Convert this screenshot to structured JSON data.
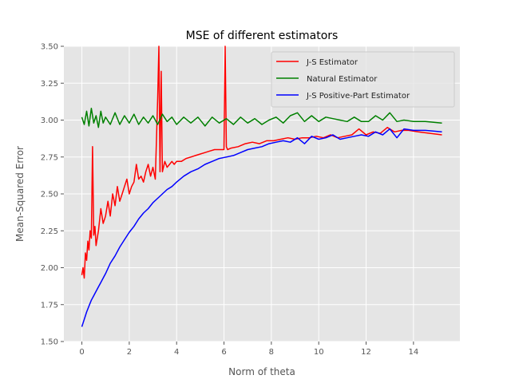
{
  "chart_data": {
    "type": "line",
    "title": "MSE of different estimators",
    "xlabel": "Norm of theta",
    "ylabel": "Mean-Squared Error",
    "xlim": [
      -0.76,
      15.96
    ],
    "ylim": [
      1.5,
      3.5
    ],
    "xticks": [
      0,
      2,
      4,
      6,
      8,
      10,
      12,
      14
    ],
    "yticks": [
      1.5,
      1.75,
      2.0,
      2.25,
      2.5,
      2.75,
      3.0,
      3.25,
      3.5
    ],
    "grid": true,
    "legend": "top-right",
    "series": [
      {
        "name": "J-S Estimator",
        "color": "#ff0000",
        "x": [
          0.0,
          0.05,
          0.1,
          0.15,
          0.2,
          0.25,
          0.3,
          0.35,
          0.4,
          0.45,
          0.5,
          0.55,
          0.6,
          0.7,
          0.8,
          0.9,
          1.0,
          1.1,
          1.2,
          1.3,
          1.4,
          1.5,
          1.6,
          1.7,
          1.8,
          1.9,
          2.0,
          2.1,
          2.2,
          2.3,
          2.4,
          2.5,
          2.6,
          2.7,
          2.8,
          2.9,
          3.0,
          3.1,
          3.2,
          3.25,
          3.3,
          3.35,
          3.4,
          3.5,
          3.6,
          3.7,
          3.8,
          3.9,
          4.0,
          4.2,
          4.4,
          4.6,
          4.8,
          5.0,
          5.2,
          5.4,
          5.6,
          5.8,
          6.0,
          6.05,
          6.1,
          6.15,
          6.3,
          6.6,
          6.9,
          7.2,
          7.5,
          7.8,
          8.1,
          8.4,
          8.7,
          9.0,
          9.3,
          9.6,
          9.9,
          10.2,
          10.5,
          10.8,
          11.1,
          11.4,
          11.7,
          12.0,
          12.3,
          12.6,
          12.9,
          13.2,
          13.5,
          13.8,
          14.2,
          14.7,
          15.2
        ],
        "values": [
          1.95,
          2.0,
          1.93,
          2.1,
          2.05,
          2.18,
          2.12,
          2.25,
          2.2,
          2.82,
          2.22,
          2.28,
          2.15,
          2.25,
          2.4,
          2.3,
          2.35,
          2.45,
          2.35,
          2.5,
          2.42,
          2.55,
          2.45,
          2.5,
          2.55,
          2.6,
          2.5,
          2.55,
          2.58,
          2.7,
          2.6,
          2.62,
          2.58,
          2.65,
          2.7,
          2.62,
          2.68,
          2.6,
          3.15,
          3.6,
          2.65,
          3.33,
          2.65,
          2.72,
          2.68,
          2.7,
          2.72,
          2.7,
          2.72,
          2.72,
          2.74,
          2.75,
          2.76,
          2.77,
          2.78,
          2.79,
          2.8,
          2.8,
          2.8,
          3.6,
          2.82,
          2.8,
          2.81,
          2.82,
          2.84,
          2.85,
          2.84,
          2.86,
          2.86,
          2.87,
          2.88,
          2.87,
          2.88,
          2.88,
          2.89,
          2.88,
          2.9,
          2.88,
          2.89,
          2.9,
          2.94,
          2.9,
          2.92,
          2.91,
          2.95,
          2.92,
          2.93,
          2.93,
          2.92,
          2.91,
          2.9
        ]
      },
      {
        "name": "Natural Estimator",
        "color": "#008000",
        "x": [
          0.0,
          0.1,
          0.2,
          0.3,
          0.4,
          0.5,
          0.6,
          0.7,
          0.8,
          0.9,
          1.0,
          1.2,
          1.4,
          1.6,
          1.8,
          2.0,
          2.2,
          2.4,
          2.6,
          2.8,
          3.0,
          3.2,
          3.4,
          3.6,
          3.8,
          4.0,
          4.3,
          4.6,
          4.9,
          5.2,
          5.5,
          5.8,
          6.1,
          6.4,
          6.7,
          7.0,
          7.3,
          7.6,
          7.9,
          8.2,
          8.5,
          8.8,
          9.1,
          9.4,
          9.7,
          10.0,
          10.3,
          10.6,
          10.9,
          11.2,
          11.5,
          11.8,
          12.1,
          12.4,
          12.7,
          13.0,
          13.3,
          13.6,
          14.0,
          14.5,
          15.2
        ],
        "values": [
          3.02,
          2.97,
          3.06,
          2.96,
          3.08,
          2.98,
          3.03,
          2.95,
          3.06,
          2.98,
          3.02,
          2.97,
          3.05,
          2.97,
          3.03,
          2.98,
          3.04,
          2.97,
          3.02,
          2.98,
          3.03,
          2.97,
          3.04,
          2.99,
          3.02,
          2.97,
          3.02,
          2.98,
          3.02,
          2.96,
          3.02,
          2.98,
          3.01,
          2.97,
          3.02,
          2.98,
          3.01,
          2.97,
          3.0,
          3.02,
          2.98,
          3.03,
          3.05,
          2.99,
          3.03,
          2.99,
          3.02,
          3.01,
          3.0,
          2.99,
          3.02,
          2.99,
          2.99,
          3.03,
          3.0,
          3.05,
          2.99,
          3.0,
          2.99,
          2.99,
          2.98
        ]
      },
      {
        "name": "J-S Positive-Part Estimator",
        "color": "#0000ff",
        "x": [
          0.0,
          0.1,
          0.2,
          0.3,
          0.4,
          0.5,
          0.6,
          0.7,
          0.8,
          0.9,
          1.0,
          1.2,
          1.4,
          1.6,
          1.8,
          2.0,
          2.2,
          2.4,
          2.6,
          2.8,
          3.0,
          3.2,
          3.4,
          3.6,
          3.8,
          4.0,
          4.3,
          4.6,
          4.9,
          5.2,
          5.5,
          5.8,
          6.1,
          6.4,
          6.7,
          7.0,
          7.3,
          7.6,
          7.9,
          8.2,
          8.5,
          8.8,
          9.1,
          9.4,
          9.7,
          10.0,
          10.3,
          10.6,
          10.9,
          11.2,
          11.5,
          11.8,
          12.1,
          12.4,
          12.7,
          13.0,
          13.3,
          13.6,
          14.0,
          14.5,
          15.2
        ],
        "values": [
          1.6,
          1.65,
          1.7,
          1.74,
          1.78,
          1.81,
          1.84,
          1.87,
          1.9,
          1.93,
          1.96,
          2.03,
          2.08,
          2.14,
          2.19,
          2.24,
          2.28,
          2.33,
          2.37,
          2.4,
          2.44,
          2.47,
          2.5,
          2.53,
          2.55,
          2.58,
          2.62,
          2.65,
          2.67,
          2.7,
          2.72,
          2.74,
          2.75,
          2.76,
          2.78,
          2.8,
          2.81,
          2.82,
          2.84,
          2.85,
          2.86,
          2.85,
          2.88,
          2.84,
          2.89,
          2.87,
          2.88,
          2.9,
          2.87,
          2.88,
          2.89,
          2.9,
          2.89,
          2.92,
          2.9,
          2.94,
          2.88,
          2.94,
          2.93,
          2.93,
          2.92
        ]
      }
    ]
  }
}
